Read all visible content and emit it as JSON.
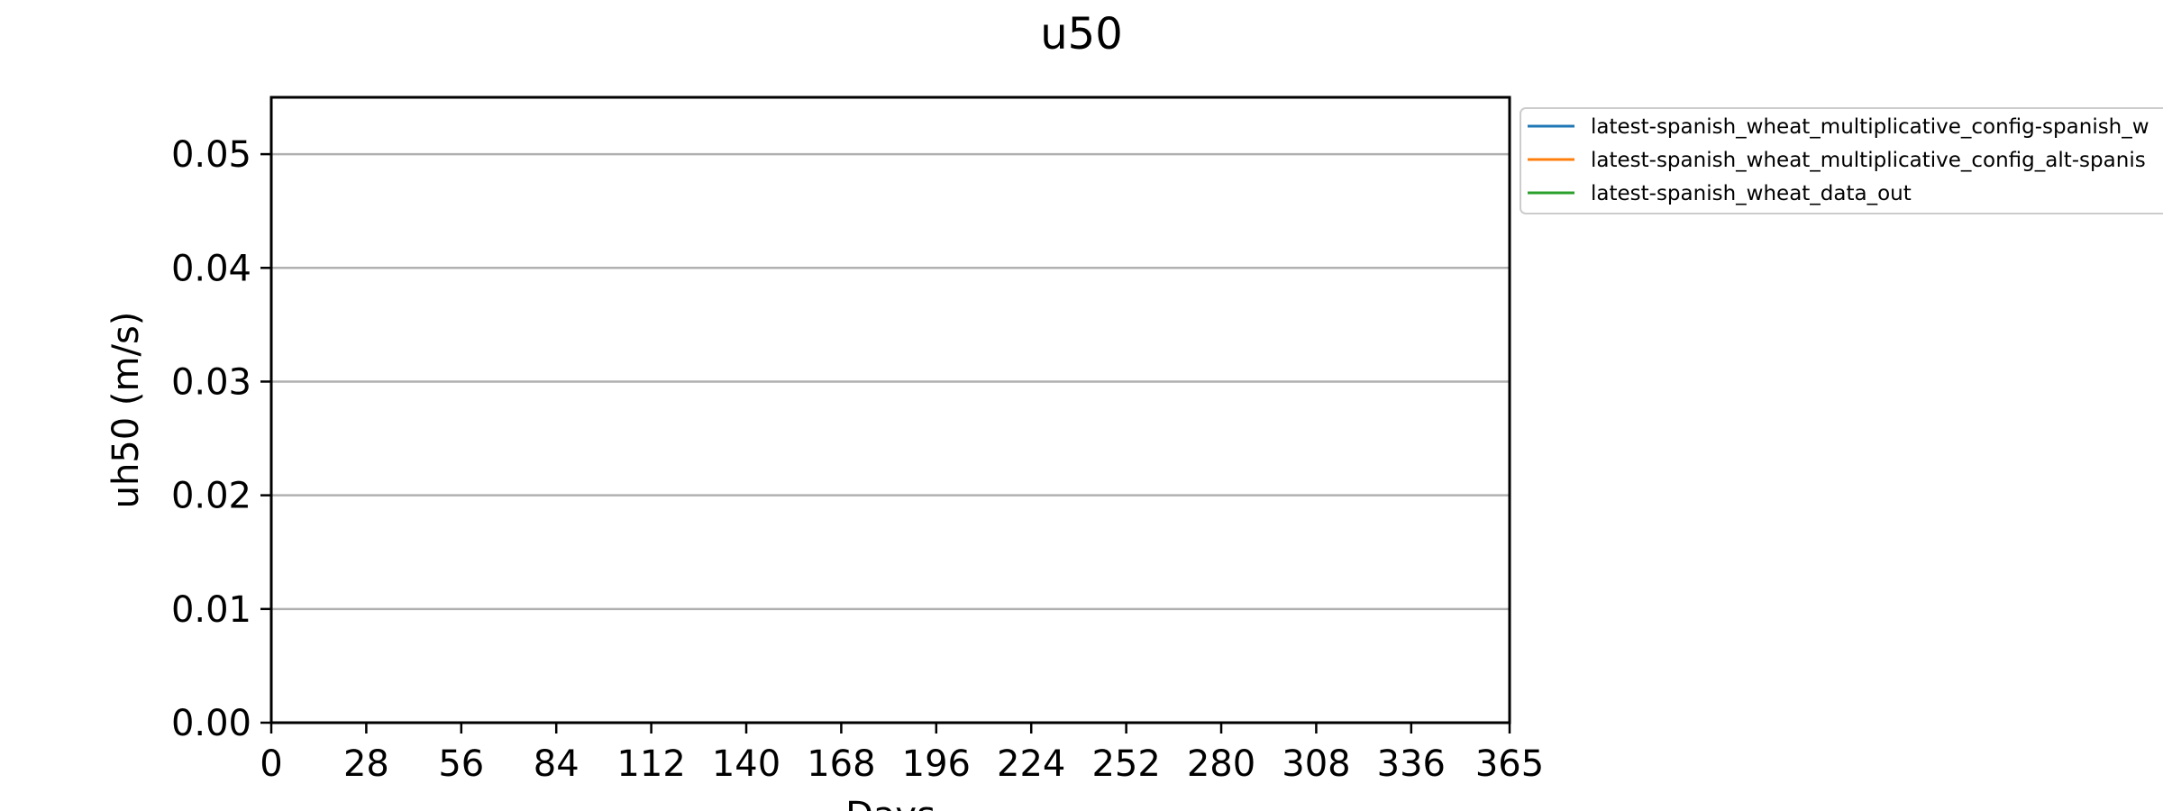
{
  "chart_data": {
    "type": "line",
    "title": "u50",
    "xlabel": "Days",
    "ylabel": "uh50 (m/s)",
    "xlim": [
      0,
      365
    ],
    "ylim": [
      0,
      0.055
    ],
    "x_ticks": [
      0,
      28,
      56,
      84,
      112,
      140,
      168,
      196,
      224,
      252,
      280,
      308,
      336,
      365
    ],
    "x_tick_labels": [
      "0",
      "28",
      "56",
      "84",
      "112",
      "140",
      "168",
      "196",
      "224",
      "252",
      "280",
      "308",
      "336",
      "365"
    ],
    "y_ticks": [
      0.0,
      0.01,
      0.02,
      0.03,
      0.04,
      0.05
    ],
    "y_tick_labels": [
      "0.00",
      "0.01",
      "0.02",
      "0.03",
      "0.04",
      "0.05"
    ],
    "grid": "horizontal",
    "legend_position": "outside upper right",
    "series": [
      {
        "name": "latest-spanish_wheat_multiplicative_config-spanish_w",
        "color": "#1f77b4",
        "x": [
          0,
          365
        ],
        "values": [
          0,
          0
        ]
      },
      {
        "name": "latest-spanish_wheat_multiplicative_config_alt-spanis",
        "color": "#ff7f0e",
        "x": [
          0,
          365
        ],
        "values": [
          0,
          0
        ]
      },
      {
        "name": "latest-spanish_wheat_data_out",
        "color": "#2ca02c",
        "x": [
          0,
          365
        ],
        "values": [
          0,
          0
        ]
      }
    ]
  }
}
